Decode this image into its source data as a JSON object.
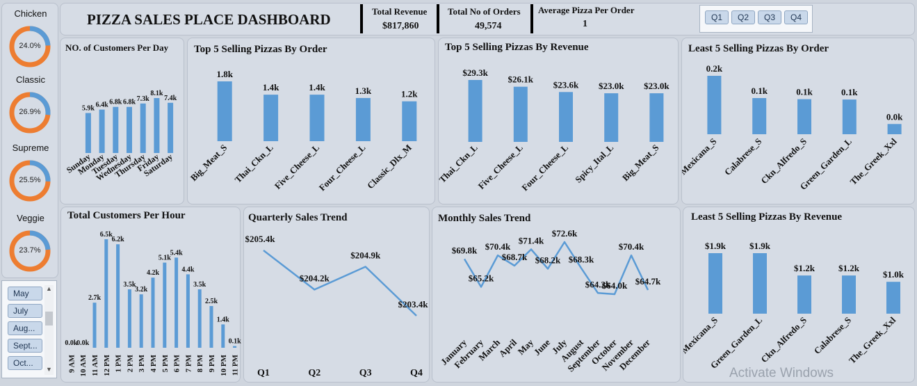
{
  "header": {
    "title": "PIZZA SALES PLACE DASHBOARD",
    "kpis": [
      {
        "label": "Total Revenue",
        "value": "$817,860"
      },
      {
        "label": "Total No of Orders",
        "value": "49,574"
      },
      {
        "label": "Average Pizza Per Order",
        "value": "1"
      }
    ],
    "quarter_buttons": [
      "Q1",
      "Q2",
      "Q3",
      "Q4"
    ]
  },
  "category_donuts": [
    {
      "name": "Chicken",
      "percent_label": "24.0%",
      "percent": 24.0
    },
    {
      "name": "Classic",
      "percent_label": "26.9%",
      "percent": 26.9
    },
    {
      "name": "Supreme",
      "percent_label": "25.5%",
      "percent": 25.5
    },
    {
      "name": "Veggie",
      "percent_label": "23.7%",
      "percent": 23.7
    }
  ],
  "month_slicer": {
    "items": [
      "May",
      "July",
      "Aug...",
      "Sept...",
      "Oct..."
    ]
  },
  "colors": {
    "bar": "#5b9bd5",
    "donut_main": "#ed7d31",
    "donut_accent": "#5b9bd5",
    "panel": "#d6dce5",
    "background": "#cfd5de"
  },
  "watermark": "Activate Windows",
  "chart_data": [
    {
      "id": "customers_per_day",
      "type": "bar",
      "title": "NO. of Customers Per Day",
      "categories": [
        "Sunday",
        "Monday",
        "Tuesday",
        "Wednesday",
        "Thursday",
        "Friday",
        "Saturday"
      ],
      "values": [
        5.9,
        6.4,
        6.8,
        6.8,
        7.3,
        8.1,
        7.4
      ],
      "labels": [
        "5.9k",
        "6.4k",
        "6.8k",
        "6.8k",
        "7.3k",
        "8.1k",
        "7.4k"
      ],
      "ylim": [
        0,
        8.1
      ]
    },
    {
      "id": "top5_by_order",
      "type": "bar",
      "title": "Top 5 Selling Pizzas By Order",
      "categories": [
        "Big_Meat_S",
        "Thai_Ckn_L",
        "Five_Cheese_L",
        "Four_Cheese_L",
        "Classic_Dlx_M"
      ],
      "values": [
        1.8,
        1.4,
        1.4,
        1.3,
        1.2
      ],
      "labels": [
        "1.8k",
        "1.4k",
        "1.4k",
        "1.3k",
        "1.2k"
      ],
      "ylim": [
        0,
        1.8
      ]
    },
    {
      "id": "top5_by_revenue",
      "type": "bar",
      "title": "Top 5 Selling Pizzas By Revenue",
      "categories": [
        "Thai_Ckn_L",
        "Five_Cheese_L",
        "Four_Cheese_L",
        "Spicy_Ital_L",
        "Big_Meat_S"
      ],
      "values": [
        29.3,
        26.1,
        23.6,
        23.0,
        23.0
      ],
      "labels": [
        "$29.3k",
        "$26.1k",
        "$23.6k",
        "$23.0k",
        "$23.0k"
      ],
      "ylim": [
        0,
        29.3
      ]
    },
    {
      "id": "least5_by_order",
      "type": "bar",
      "title": "Least 5 Selling Pizzas By Order",
      "categories": [
        "Mexicana_S",
        "Calabrese_S",
        "Ckn_Alfredo_S",
        "Green_Garden_L",
        "The_Greek_Xxl"
      ],
      "values": [
        0.16,
        0.099,
        0.096,
        0.095,
        0.028
      ],
      "labels": [
        "0.2k",
        "0.1k",
        "0.1k",
        "0.1k",
        "0.0k"
      ],
      "ylim": [
        0,
        0.16
      ]
    },
    {
      "id": "customers_per_hour",
      "type": "bar",
      "title": "Total Customers Per Hour",
      "categories": [
        "9 AM",
        "10 AM",
        "11 AM",
        "12 PM",
        "1 PM",
        "2 PM",
        "3 PM",
        "4 PM",
        "5 PM",
        "6 PM",
        "7 PM",
        "8 PM",
        "9 PM",
        "10 PM",
        "11 PM"
      ],
      "values": [
        0.0,
        0.0,
        2.7,
        6.5,
        6.2,
        3.5,
        3.2,
        4.2,
        5.1,
        5.4,
        4.4,
        3.5,
        2.5,
        1.4,
        0.1
      ],
      "labels": [
        "0.0k",
        "0.0k",
        "2.7k",
        "6.5k",
        "6.2k",
        "3.5k",
        "3.2k",
        "4.2k",
        "5.1k",
        "5.4k",
        "4.4k",
        "3.5k",
        "2.5k",
        "1.4k",
        "0.1k"
      ],
      "ylim": [
        0,
        6.5
      ]
    },
    {
      "id": "quarterly_trend",
      "type": "line",
      "title": "Quarterly Sales Trend",
      "categories": [
        "Q1",
        "Q2",
        "Q3",
        "Q4"
      ],
      "values": [
        205.4,
        204.2,
        204.9,
        203.4
      ],
      "labels": [
        "$205.4k",
        "$204.2k",
        "$204.9k",
        "$203.4k"
      ],
      "ylim": [
        203.4,
        205.4
      ]
    },
    {
      "id": "monthly_trend",
      "type": "line",
      "title": "Monthly Sales Trend",
      "categories": [
        "January",
        "February",
        "March",
        "April",
        "May",
        "June",
        "July",
        "August",
        "September",
        "October",
        "November",
        "December"
      ],
      "values": [
        69.8,
        65.2,
        70.4,
        68.7,
        71.4,
        68.2,
        72.6,
        68.3,
        64.2,
        64.0,
        70.4,
        64.7
      ],
      "labels": [
        "$69.8k",
        "$65.2k",
        "$70.4k",
        "$68.7k",
        "$71.4k",
        "$68.2k",
        "$72.6k",
        "$68.3k",
        "$64.2k",
        "$64.0k",
        "$70.4k",
        "$64.7k"
      ],
      "ylim": [
        64.0,
        72.6
      ]
    },
    {
      "id": "least5_by_revenue",
      "type": "bar",
      "title": "Least 5 Selling Pizzas By Revenue",
      "categories": [
        "Mexicana_S",
        "Green_Garden_L",
        "Ckn_Alfredo_S",
        "Calabrese_S",
        "The_Greek_Xxl"
      ],
      "values": [
        1.9,
        1.9,
        1.2,
        1.2,
        1.0
      ],
      "labels": [
        "$1.9k",
        "$1.9k",
        "$1.2k",
        "$1.2k",
        "$1.0k"
      ],
      "ylim": [
        0,
        1.9
      ]
    }
  ]
}
